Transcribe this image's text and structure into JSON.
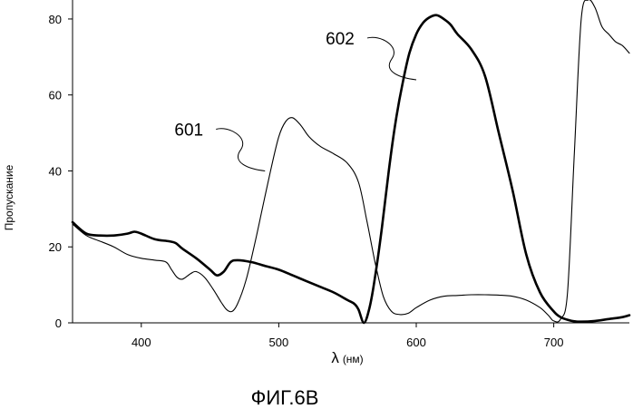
{
  "chart_data": {
    "type": "line",
    "title": "",
    "xlabel": "λ",
    "xlabel_unit": "(нм)",
    "ylabel": "Пропускание",
    "xlim": [
      350,
      755
    ],
    "ylim": [
      0,
      85
    ],
    "xticks": [
      400,
      500,
      600,
      700
    ],
    "yticks": [
      0,
      20,
      40,
      60,
      80
    ],
    "grid": false,
    "series": [
      {
        "name": "601",
        "style": "thin",
        "x": [
          350,
          360,
          370,
          380,
          390,
          400,
          410,
          418,
          422,
          426,
          430,
          436,
          440,
          446,
          452,
          458,
          462,
          466,
          470,
          476,
          482,
          488,
          494,
          500,
          505,
          510,
          516,
          522,
          530,
          540,
          550,
          558,
          564,
          570,
          576,
          582,
          588,
          594,
          600,
          610,
          620,
          630,
          640,
          650,
          660,
          670,
          680,
          690,
          696,
          700,
          705,
          710,
          715,
          720,
          725,
          730,
          735,
          740,
          745,
          750,
          755
        ],
        "y": [
          26,
          23,
          21.5,
          20,
          18,
          17,
          16.5,
          16,
          14,
          12,
          11.5,
          13,
          13.5,
          12,
          9,
          5.5,
          3.5,
          3,
          5,
          11,
          20,
          30,
          40,
          49,
          53,
          54,
          52,
          49,
          46.5,
          44.5,
          42,
          37,
          27,
          16,
          7,
          3,
          2.2,
          2.5,
          4,
          6,
          7,
          7.2,
          7.4,
          7.4,
          7.3,
          7,
          6,
          4,
          2,
          0.5,
          1,
          8,
          45,
          80,
          85,
          83,
          78,
          76,
          74,
          73,
          71
        ]
      },
      {
        "name": "602",
        "style": "thick",
        "x": [
          350,
          360,
          370,
          380,
          390,
          395,
          400,
          410,
          420,
          425,
          430,
          440,
          450,
          455,
          460,
          465,
          470,
          480,
          490,
          500,
          510,
          520,
          530,
          540,
          550,
          555,
          558,
          562,
          566,
          570,
          575,
          580,
          585,
          590,
          595,
          600,
          605,
          610,
          615,
          620,
          625,
          630,
          640,
          650,
          660,
          670,
          680,
          690,
          700,
          705,
          710,
          715,
          720,
          730,
          740,
          750,
          755
        ],
        "y": [
          26.5,
          23.5,
          23,
          23,
          23.5,
          24,
          23.5,
          22,
          21.5,
          21,
          19.5,
          17,
          14,
          12.5,
          13.5,
          16,
          16.5,
          16,
          15,
          14,
          12.5,
          11,
          9.5,
          8,
          6,
          5,
          3.5,
          0,
          4,
          12,
          25,
          40,
          53,
          63,
          71,
          76,
          79,
          80.5,
          81,
          80,
          78.5,
          76,
          72,
          65,
          50,
          35,
          18,
          8,
          3,
          1.5,
          0.8,
          0.4,
          0.3,
          0.5,
          1,
          1.5,
          2
        ]
      }
    ],
    "annotations": [
      {
        "text": "601",
        "target": {
          "series": "601",
          "x": 490,
          "y": 40
        }
      },
      {
        "text": "602",
        "target": {
          "series": "602",
          "x": 600,
          "y": 64
        }
      }
    ],
    "caption": "ФИГ.6В"
  }
}
